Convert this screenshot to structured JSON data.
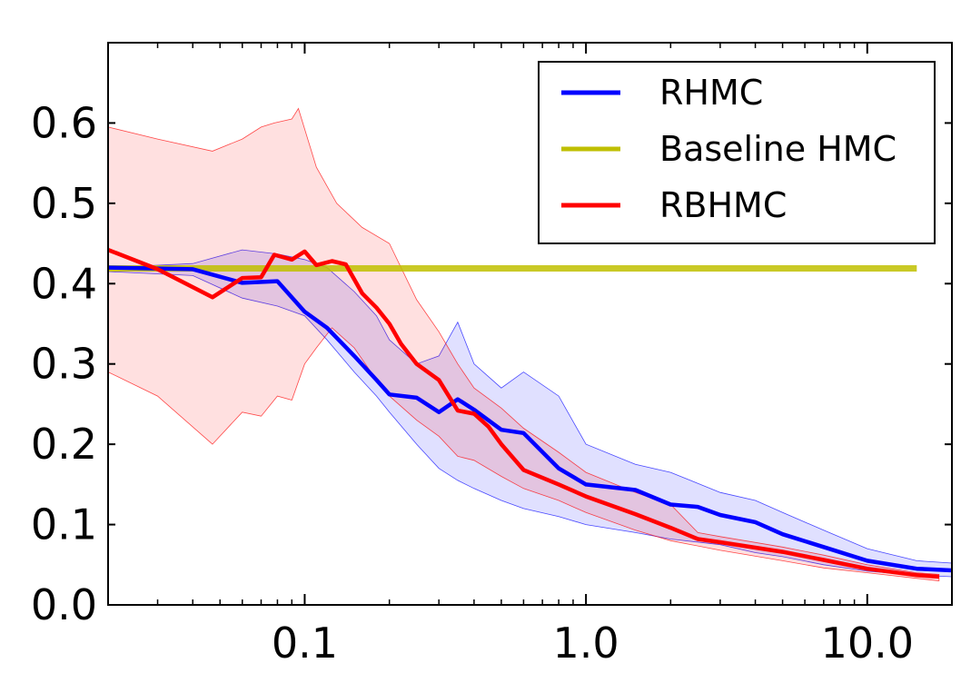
{
  "chart_data": {
    "type": "line",
    "title": "",
    "xlabel": "",
    "ylabel": "",
    "xscale": "log",
    "xlim": [
      0.02,
      20
    ],
    "ylim": [
      0.0,
      0.7
    ],
    "xticks": [
      0.1,
      1.0,
      10.0
    ],
    "xtick_labels": [
      "0.1",
      "1.0",
      "10.0"
    ],
    "yticks": [
      0.0,
      0.1,
      0.2,
      0.3,
      0.4,
      0.5,
      0.6
    ],
    "ytick_labels": [
      "0.0",
      "0.1",
      "0.2",
      "0.3",
      "0.4",
      "0.5",
      "0.6"
    ],
    "legend": {
      "placement": "top-right",
      "entries": [
        {
          "label": "RHMC",
          "color": "#0000ff"
        },
        {
          "label": "Baseline HMC",
          "color": "#bfbf00"
        },
        {
          "label": "RBHMC",
          "color": "#ff0000"
        }
      ]
    },
    "series": [
      {
        "name": "RHMC",
        "color": "#0000ff",
        "band_color": "#0000ff",
        "points": [
          [
            0.02,
            0.42
          ],
          [
            0.04,
            0.418
          ],
          [
            0.06,
            0.401
          ],
          [
            0.08,
            0.403
          ],
          [
            0.1,
            0.365
          ],
          [
            0.12,
            0.345
          ],
          [
            0.15,
            0.31
          ],
          [
            0.18,
            0.28
          ],
          [
            0.2,
            0.262
          ],
          [
            0.25,
            0.258
          ],
          [
            0.3,
            0.24
          ],
          [
            0.35,
            0.256
          ],
          [
            0.4,
            0.243
          ],
          [
            0.5,
            0.218
          ],
          [
            0.6,
            0.214
          ],
          [
            0.8,
            0.17
          ],
          [
            1.0,
            0.15
          ],
          [
            1.5,
            0.143
          ],
          [
            2.0,
            0.125
          ],
          [
            2.5,
            0.122
          ],
          [
            3.0,
            0.112
          ],
          [
            4.0,
            0.103
          ],
          [
            5.0,
            0.088
          ],
          [
            7.0,
            0.072
          ],
          [
            10.0,
            0.055
          ],
          [
            15.0,
            0.045
          ],
          [
            20.0,
            0.043
          ]
        ],
        "lower": [
          [
            0.02,
            0.415
          ],
          [
            0.04,
            0.41
          ],
          [
            0.06,
            0.382
          ],
          [
            0.08,
            0.372
          ],
          [
            0.1,
            0.36
          ],
          [
            0.12,
            0.33
          ],
          [
            0.15,
            0.29
          ],
          [
            0.18,
            0.26
          ],
          [
            0.2,
            0.24
          ],
          [
            0.25,
            0.2
          ],
          [
            0.3,
            0.17
          ],
          [
            0.35,
            0.155
          ],
          [
            0.4,
            0.145
          ],
          [
            0.5,
            0.13
          ],
          [
            0.6,
            0.12
          ],
          [
            0.8,
            0.11
          ],
          [
            1.0,
            0.1
          ],
          [
            1.5,
            0.09
          ],
          [
            2.0,
            0.082
          ],
          [
            3.0,
            0.075
          ],
          [
            4.0,
            0.065
          ],
          [
            5.0,
            0.06
          ],
          [
            7.0,
            0.05
          ],
          [
            10.0,
            0.042
          ],
          [
            15.0,
            0.037
          ],
          [
            20.0,
            0.035
          ]
        ],
        "upper": [
          [
            0.02,
            0.42
          ],
          [
            0.04,
            0.425
          ],
          [
            0.06,
            0.442
          ],
          [
            0.08,
            0.437
          ],
          [
            0.1,
            0.43
          ],
          [
            0.12,
            0.42
          ],
          [
            0.15,
            0.39
          ],
          [
            0.18,
            0.36
          ],
          [
            0.2,
            0.33
          ],
          [
            0.25,
            0.3
          ],
          [
            0.3,
            0.31
          ],
          [
            0.35,
            0.352
          ],
          [
            0.4,
            0.3
          ],
          [
            0.5,
            0.27
          ],
          [
            0.6,
            0.29
          ],
          [
            0.8,
            0.26
          ],
          [
            1.0,
            0.2
          ],
          [
            1.5,
            0.175
          ],
          [
            2.0,
            0.165
          ],
          [
            3.0,
            0.14
          ],
          [
            4.0,
            0.13
          ],
          [
            5.0,
            0.115
          ],
          [
            7.0,
            0.093
          ],
          [
            10.0,
            0.07
          ],
          [
            15.0,
            0.055
          ],
          [
            20.0,
            0.052
          ]
        ]
      },
      {
        "name": "Baseline HMC",
        "color": "#bfbf00",
        "points": [
          [
            0.02,
            0.419
          ],
          [
            15.0,
            0.419
          ]
        ]
      },
      {
        "name": "RBHMC",
        "color": "#ff0000",
        "band_color": "#ff0000",
        "points": [
          [
            0.02,
            0.442
          ],
          [
            0.03,
            0.418
          ],
          [
            0.047,
            0.383
          ],
          [
            0.06,
            0.407
          ],
          [
            0.07,
            0.408
          ],
          [
            0.078,
            0.436
          ],
          [
            0.09,
            0.43
          ],
          [
            0.1,
            0.44
          ],
          [
            0.11,
            0.423
          ],
          [
            0.125,
            0.428
          ],
          [
            0.14,
            0.424
          ],
          [
            0.16,
            0.388
          ],
          [
            0.18,
            0.37
          ],
          [
            0.2,
            0.35
          ],
          [
            0.22,
            0.325
          ],
          [
            0.25,
            0.3
          ],
          [
            0.3,
            0.28
          ],
          [
            0.35,
            0.242
          ],
          [
            0.4,
            0.238
          ],
          [
            0.45,
            0.222
          ],
          [
            0.5,
            0.2
          ],
          [
            0.6,
            0.168
          ],
          [
            0.8,
            0.15
          ],
          [
            1.0,
            0.135
          ],
          [
            1.5,
            0.113
          ],
          [
            2.0,
            0.096
          ],
          [
            2.5,
            0.082
          ],
          [
            3.0,
            0.078
          ],
          [
            5.0,
            0.066
          ],
          [
            7.0,
            0.056
          ],
          [
            10.0,
            0.045
          ],
          [
            15.0,
            0.037
          ],
          [
            18.0,
            0.035
          ]
        ],
        "lower": [
          [
            0.02,
            0.29
          ],
          [
            0.03,
            0.26
          ],
          [
            0.047,
            0.2
          ],
          [
            0.06,
            0.24
          ],
          [
            0.07,
            0.235
          ],
          [
            0.08,
            0.26
          ],
          [
            0.09,
            0.255
          ],
          [
            0.1,
            0.3
          ],
          [
            0.11,
            0.32
          ],
          [
            0.125,
            0.345
          ],
          [
            0.15,
            0.32
          ],
          [
            0.18,
            0.28
          ],
          [
            0.2,
            0.26
          ],
          [
            0.25,
            0.23
          ],
          [
            0.3,
            0.21
          ],
          [
            0.35,
            0.185
          ],
          [
            0.4,
            0.18
          ],
          [
            0.5,
            0.16
          ],
          [
            0.6,
            0.145
          ],
          [
            0.8,
            0.13
          ],
          [
            1.0,
            0.115
          ],
          [
            1.5,
            0.093
          ],
          [
            2.0,
            0.08
          ],
          [
            3.0,
            0.068
          ],
          [
            5.0,
            0.055
          ],
          [
            7.0,
            0.046
          ],
          [
            10.0,
            0.04
          ],
          [
            15.0,
            0.033
          ],
          [
            18.0,
            0.03
          ]
        ],
        "upper": [
          [
            0.02,
            0.595
          ],
          [
            0.03,
            0.58
          ],
          [
            0.047,
            0.565
          ],
          [
            0.06,
            0.58
          ],
          [
            0.07,
            0.595
          ],
          [
            0.078,
            0.6
          ],
          [
            0.09,
            0.605
          ],
          [
            0.095,
            0.618
          ],
          [
            0.11,
            0.545
          ],
          [
            0.13,
            0.5
          ],
          [
            0.16,
            0.47
          ],
          [
            0.2,
            0.45
          ],
          [
            0.25,
            0.38
          ],
          [
            0.3,
            0.34
          ],
          [
            0.35,
            0.3
          ],
          [
            0.4,
            0.27
          ],
          [
            0.5,
            0.245
          ],
          [
            0.6,
            0.22
          ],
          [
            0.8,
            0.19
          ],
          [
            1.0,
            0.165
          ],
          [
            1.5,
            0.14
          ],
          [
            2.0,
            0.125
          ],
          [
            2.5,
            0.09
          ],
          [
            3.0,
            0.085
          ],
          [
            5.0,
            0.072
          ],
          [
            7.0,
            0.062
          ],
          [
            10.0,
            0.05
          ],
          [
            15.0,
            0.04
          ],
          [
            18.0,
            0.038
          ]
        ]
      }
    ]
  }
}
